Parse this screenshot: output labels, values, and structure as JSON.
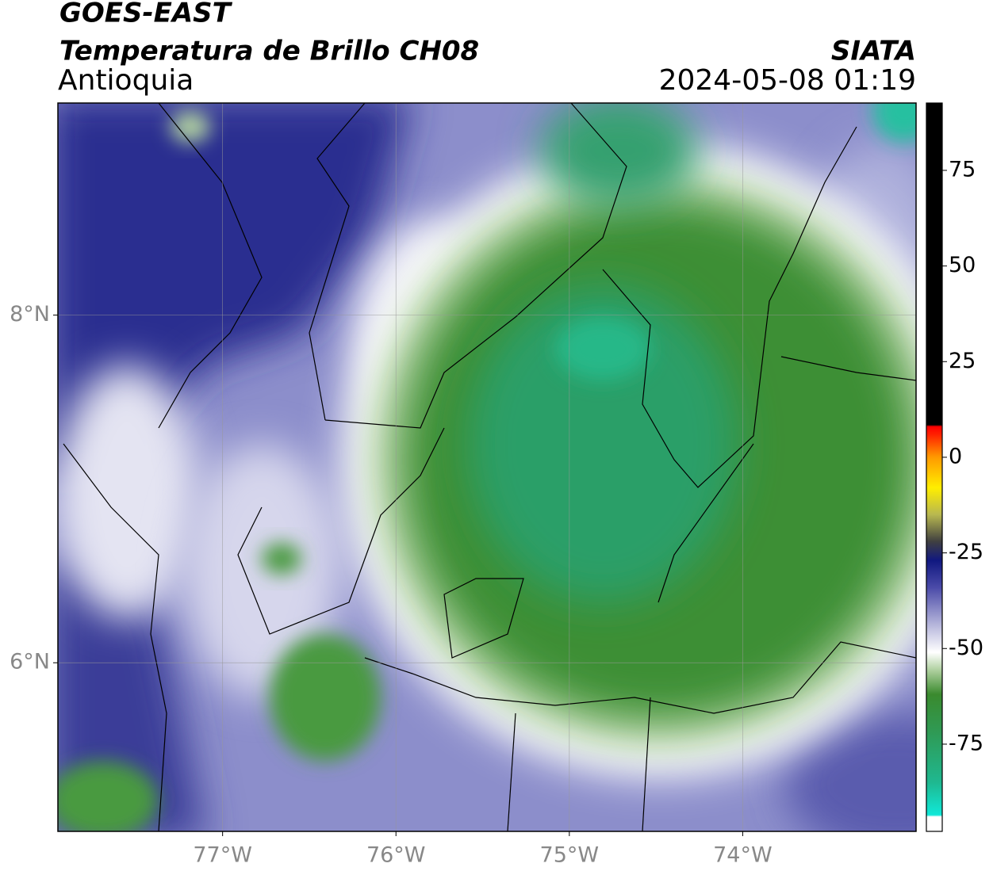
{
  "header": {
    "title": "GOES-EAST",
    "subtitle": "Temperatura de Brillo CH08",
    "region": "Antioquia",
    "source": "SIATA",
    "datetime": "2024-05-08 01:19"
  },
  "map": {
    "xlim": [
      -77.95,
      -73.0
    ],
    "ylim": [
      5.03,
      9.22
    ],
    "xticks": [
      {
        "value": -77,
        "label": "77°W"
      },
      {
        "value": -76,
        "label": "76°W"
      },
      {
        "value": -75,
        "label": "75°W"
      },
      {
        "value": -74,
        "label": "74°W"
      }
    ],
    "yticks": [
      {
        "value": 6,
        "label": "6°N"
      },
      {
        "value": 8,
        "label": "8°N"
      }
    ],
    "grid": true
  },
  "colorbar": {
    "lim": [
      -97.8,
      92.6
    ],
    "ticks": [
      -75,
      -50,
      -25,
      0,
      25,
      50,
      75
    ],
    "colormap": [
      {
        "value": -97.8,
        "color": "#ffffff"
      },
      {
        "value": -94,
        "color": "#ffffff"
      },
      {
        "value": -93.5,
        "color": "#10e8d8"
      },
      {
        "value": -85,
        "color": "#1fb890"
      },
      {
        "value": -72,
        "color": "#2f9a55"
      },
      {
        "value": -62,
        "color": "#3a8a2e"
      },
      {
        "value": -56,
        "color": "#a8cc98"
      },
      {
        "value": -51,
        "color": "#ffffff"
      },
      {
        "value": -44,
        "color": "#b8b8dc"
      },
      {
        "value": -34,
        "color": "#4a4aa8"
      },
      {
        "value": -27,
        "color": "#101880"
      },
      {
        "value": -22,
        "color": "#404040"
      },
      {
        "value": -15,
        "color": "#b8b850"
      },
      {
        "value": -8,
        "color": "#ffee00"
      },
      {
        "value": 0,
        "color": "#ff9a00"
      },
      {
        "value": 6,
        "color": "#ff2000"
      },
      {
        "value": 8,
        "color": "#ff0000"
      },
      {
        "value": 8.5,
        "color": "#000000"
      },
      {
        "value": 92.6,
        "color": "#000000"
      }
    ]
  }
}
